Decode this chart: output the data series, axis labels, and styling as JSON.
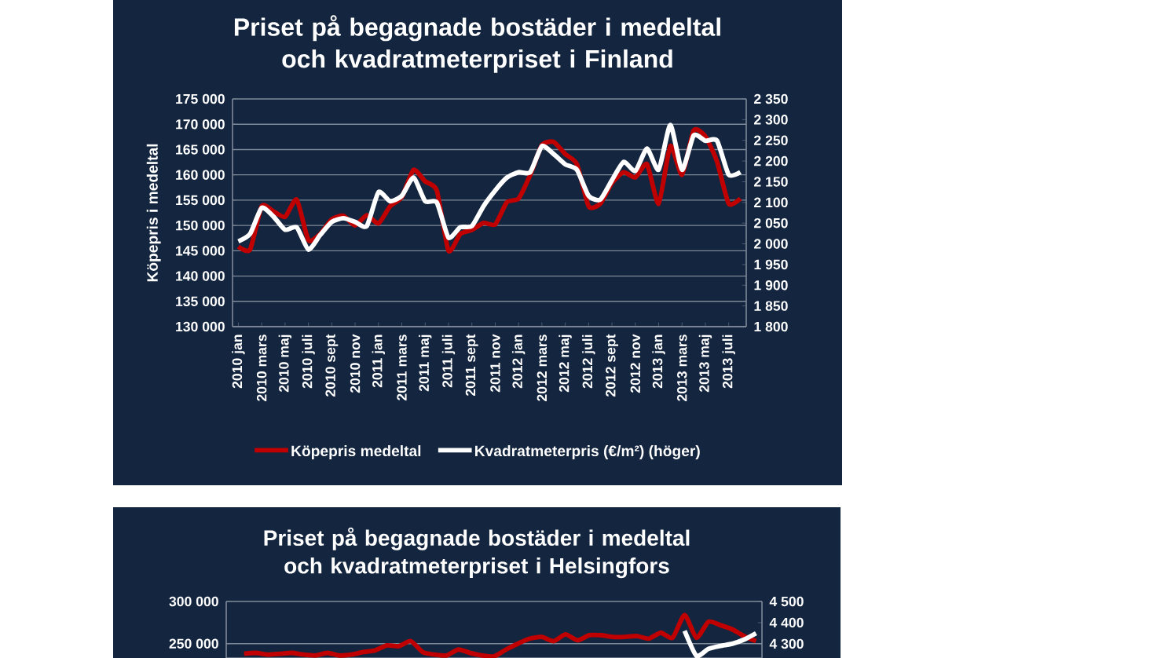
{
  "chart_data": [
    {
      "type": "line",
      "title": "Priset på begagnade bostäder i medeltal och kvadratmeterpriset i Finland",
      "ylabel": "Köpepris i medeltal",
      "categories": [
        "2010 jan",
        null,
        "2010 mars",
        null,
        "2010 maj",
        null,
        "2010 juli",
        null,
        "2010 sept",
        null,
        "2010 nov",
        null,
        "2011 jan",
        null,
        "2011 mars",
        null,
        "2011 maj",
        null,
        "2011 juli",
        null,
        "2011 sept",
        null,
        "2011 nov",
        null,
        "2012 jan",
        null,
        "2012 mars",
        null,
        "2012 maj",
        null,
        "2012 juli",
        null,
        "2012 sept",
        null,
        "2012 nov",
        null,
        "2013 jan",
        null,
        "2013 mars",
        null,
        "2013 maj",
        null,
        "2013 juli",
        null
      ],
      "series": [
        {
          "name": "Köpepris medeltal",
          "color": "#c00000",
          "values": [
            145800,
            145200,
            153800,
            152800,
            151700,
            155100,
            147100,
            148300,
            151200,
            151900,
            150000,
            152000,
            150400,
            153800,
            155600,
            161000,
            158700,
            156900,
            145000,
            148300,
            149100,
            150500,
            150200,
            154600,
            155300,
            160000,
            165900,
            166500,
            164100,
            162100,
            153800,
            154300,
            158400,
            160500,
            159500,
            162100,
            154300,
            165700,
            160000,
            168800,
            167600,
            162600,
            154300,
            155300
          ]
        },
        {
          "name": "Kvadratmeterpris (€/m²) (höger)",
          "color": "#ffffff",
          "axis": "y2",
          "values": [
            2006,
            2024,
            2087,
            2066,
            2034,
            2040,
            1986,
            2021,
            2053,
            2062,
            2053,
            2043,
            2125,
            2103,
            2116,
            2160,
            2103,
            2100,
            2015,
            2040,
            2043,
            2091,
            2129,
            2160,
            2173,
            2173,
            2236,
            2217,
            2192,
            2179,
            2116,
            2107,
            2154,
            2198,
            2176,
            2230,
            2179,
            2287,
            2179,
            2262,
            2249,
            2249,
            2167,
            2173
          ]
        }
      ],
      "ylim": [
        130000,
        175000
      ],
      "yticks": [
        {
          "value": 130000,
          "label": "130 000"
        },
        {
          "value": 135000,
          "label": "135 000"
        },
        {
          "value": 140000,
          "label": "140 000"
        },
        {
          "value": 145000,
          "label": "145 000"
        },
        {
          "value": 150000,
          "label": "150 000"
        },
        {
          "value": 155000,
          "label": "155 000"
        },
        {
          "value": 160000,
          "label": "160 000"
        },
        {
          "value": 165000,
          "label": "165 000"
        },
        {
          "value": 170000,
          "label": "170 000"
        },
        {
          "value": 175000,
          "label": "175 000"
        }
      ],
      "y2lim": [
        1800,
        2350
      ],
      "y2ticks": [
        {
          "value": 1800,
          "label": "1 800"
        },
        {
          "value": 1850,
          "label": "1 850"
        },
        {
          "value": 1900,
          "label": "1 900"
        },
        {
          "value": 1950,
          "label": "1 950"
        },
        {
          "value": 2000,
          "label": "2 000"
        },
        {
          "value": 2050,
          "label": "2 050"
        },
        {
          "value": 2100,
          "label": "2 100"
        },
        {
          "value": 2150,
          "label": "2 150"
        },
        {
          "value": 2200,
          "label": "2 200"
        },
        {
          "value": 2250,
          "label": "2 250"
        },
        {
          "value": 2300,
          "label": "2 300"
        },
        {
          "value": 2350,
          "label": "2 350"
        }
      ],
      "grid": "y",
      "legend": "bottom"
    },
    {
      "type": "line",
      "title": "Priset på begagnade bostäder i medeltal och kvadratmeterpriset i Helsingfors",
      "categories": [
        null,
        null,
        null,
        null,
        null,
        null,
        null,
        null,
        null,
        null,
        null,
        null,
        null,
        null,
        null,
        null,
        null,
        null,
        null,
        null,
        null,
        null,
        null,
        null,
        null,
        null,
        null,
        null,
        null,
        null,
        null,
        null,
        null,
        null,
        null,
        null,
        null,
        null,
        null,
        null,
        null,
        null,
        null,
        null,
        null
      ],
      "series": [
        {
          "color": "#c00000",
          "values": [
            null,
            238000,
            239000,
            237000,
            238000,
            239000,
            237000,
            236000,
            239000,
            236000,
            237000,
            240000,
            242000,
            248000,
            247000,
            253000,
            240000,
            237000,
            236000,
            243000,
            239000,
            236000,
            235000,
            243000,
            250000,
            256000,
            258000,
            253000,
            261000,
            254000,
            260000,
            260000,
            258000,
            258000,
            259000,
            256000,
            263000,
            257000,
            284000,
            257000,
            276000,
            272000,
            267000,
            259000,
            253000
          ]
        },
        {
          "color": "#ffffff",
          "axis": "y2",
          "values": [
            null,
            null,
            null,
            null,
            null,
            null,
            null,
            null,
            null,
            null,
            null,
            null,
            null,
            null,
            null,
            null,
            null,
            null,
            null,
            null,
            null,
            null,
            null,
            null,
            null,
            null,
            null,
            null,
            null,
            null,
            null,
            null,
            null,
            null,
            null,
            null,
            null,
            null,
            4361,
            4243,
            4276,
            4290,
            4300,
            4320,
            4350
          ]
        }
      ],
      "ylim": [
        233000,
        300000
      ],
      "yticks": [
        {
          "value": 250000,
          "label": "250 000"
        },
        {
          "value": 300000,
          "label": "300 000"
        }
      ],
      "y2lim": [
        4233,
        4500
      ],
      "y2ticks": [
        {
          "value": 4300,
          "label": "4 300"
        },
        {
          "value": 4400,
          "label": "4 400"
        },
        {
          "value": 4500,
          "label": "4 500"
        }
      ],
      "grid": "y"
    }
  ]
}
